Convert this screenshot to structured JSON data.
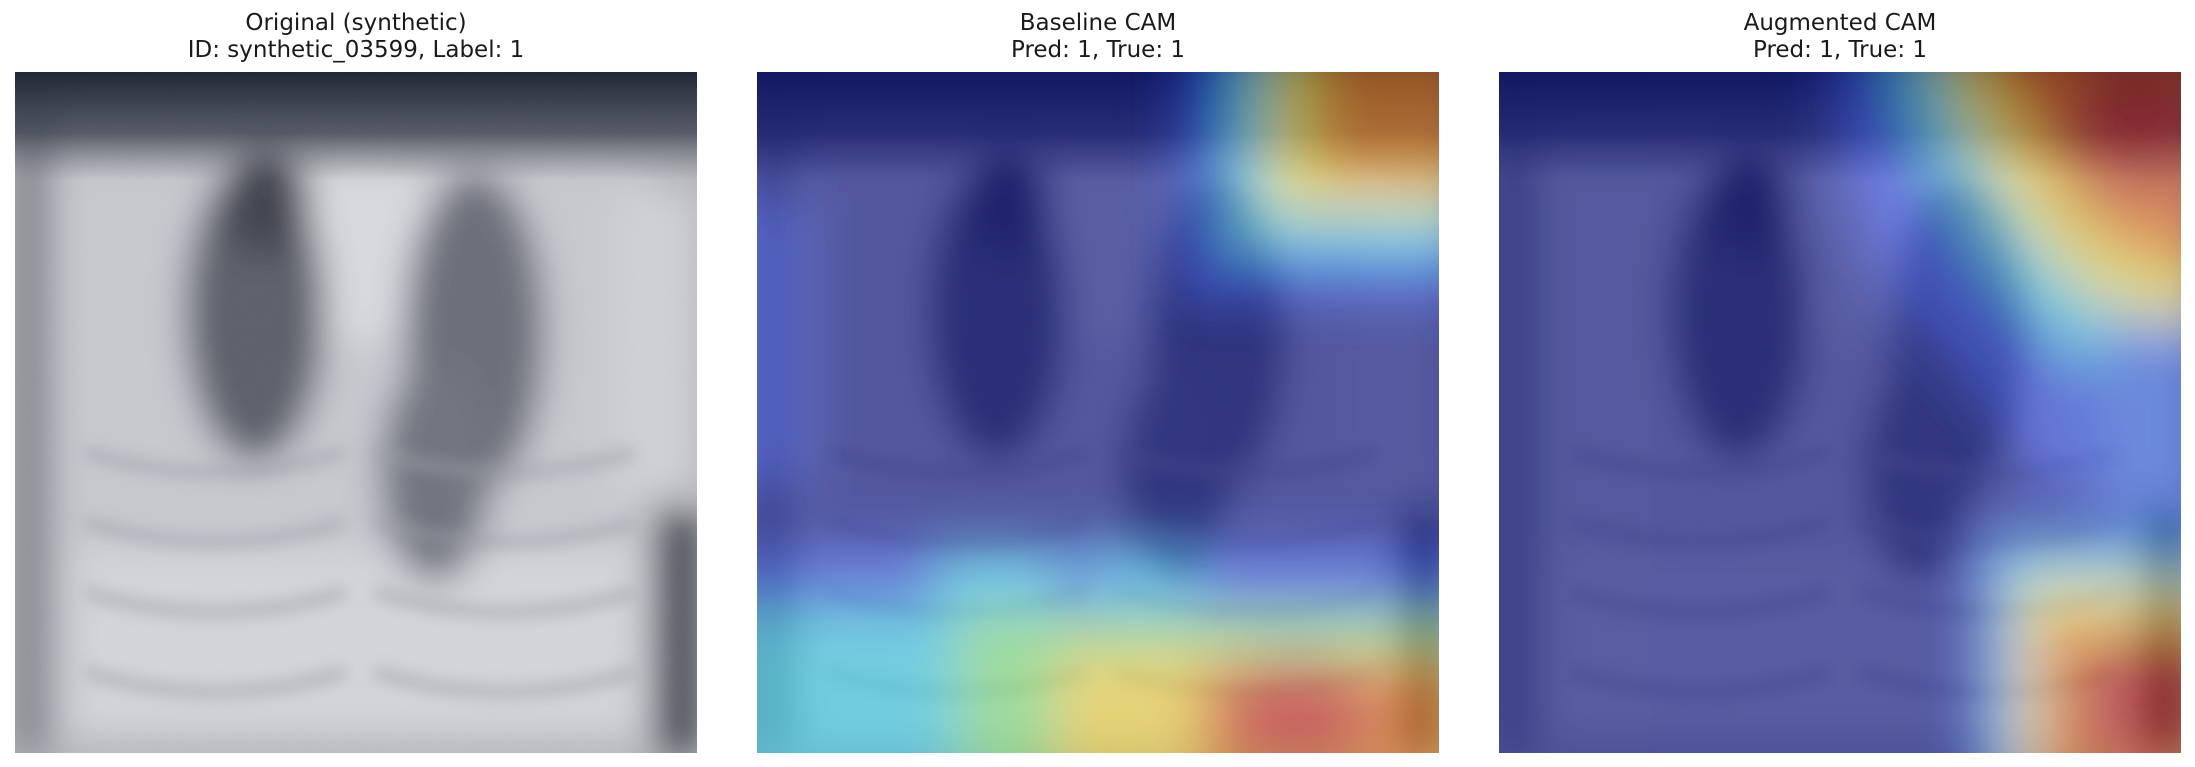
{
  "panels": [
    {
      "title_line1": "Original (synthetic)",
      "title_line2": "ID: synthetic_03599, Label: 1",
      "image": "grayscale synthetic chest x-ray"
    },
    {
      "title_line1": "Baseline CAM",
      "title_line2": "Pred: 1, True: 1",
      "image": "x-ray with jet-colormap heatmap overlay"
    },
    {
      "title_line1": "Augmented CAM",
      "title_line2": "Pred: 1, True: 1",
      "image": "x-ray with jet-colormap heatmap overlay"
    }
  ],
  "colors": {
    "background": "#ffffff",
    "title_text": "#1a1a1a",
    "cam_low": "#0b0f6e",
    "cam_mid": "#37d3e6",
    "cam_high": "#9e0f0f"
  }
}
